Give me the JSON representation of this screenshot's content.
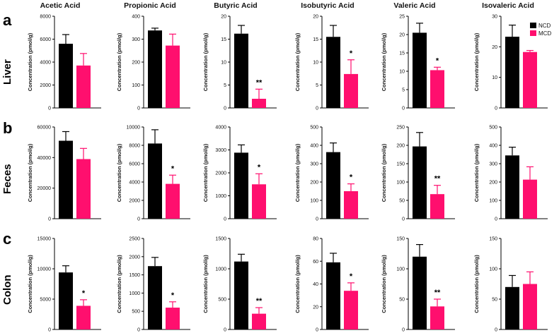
{
  "colors": {
    "ncd": "#000000",
    "mcd": "#ff0f6e"
  },
  "legend": [
    {
      "name": "NCD",
      "color": "#000000"
    },
    {
      "name": "MCD",
      "color": "#ff0f6e"
    }
  ],
  "ylabel": "Concentration (pmol/g)",
  "column_titles": [
    "Acetic Acid",
    "Propionic Acid",
    "Butyric Acid",
    "Isobutyric Acid",
    "Valeric Acid",
    "Isovaleric Acid"
  ],
  "rows": [
    {
      "letter": "a",
      "name": "Liver"
    },
    {
      "letter": "b",
      "name": "Feces"
    },
    {
      "letter": "c",
      "name": "Colon"
    }
  ],
  "chart_data": [
    {
      "type": "bar",
      "row": "Liver",
      "title": "Acetic Acid",
      "categories": [
        "NCD",
        "MCD"
      ],
      "values": [
        5600,
        3700
      ],
      "errors": [
        800,
        1050
      ],
      "ylim": [
        0,
        8000
      ],
      "yticks": [
        0,
        2000,
        4000,
        6000,
        8000
      ],
      "significance": "",
      "ylabel": "Concentration (pmol/g)"
    },
    {
      "type": "bar",
      "row": "Liver",
      "title": "Propionic Acid",
      "categories": [
        "NCD",
        "MCD"
      ],
      "values": [
        338,
        272
      ],
      "errors": [
        10,
        50
      ],
      "ylim": [
        0,
        400
      ],
      "yticks": [
        0,
        100,
        200,
        300,
        400
      ],
      "significance": "",
      "ylabel": "Concentration (pmol/g)"
    },
    {
      "type": "bar",
      "row": "Liver",
      "title": "Butyric Acid",
      "categories": [
        "NCD",
        "MCD"
      ],
      "values": [
        16.2,
        2.0
      ],
      "errors": [
        1.8,
        2.1
      ],
      "ylim": [
        0,
        20
      ],
      "yticks": [
        0,
        5,
        10,
        15,
        20
      ],
      "significance": "**",
      "ylabel": "Concentration (pmol/g)"
    },
    {
      "type": "bar",
      "row": "Liver",
      "title": "Isobutyric Acid",
      "categories": [
        "NCD",
        "MCD"
      ],
      "values": [
        15.5,
        7.4
      ],
      "errors": [
        2.5,
        3.1
      ],
      "ylim": [
        0,
        20
      ],
      "yticks": [
        0,
        5,
        10,
        15,
        20
      ],
      "significance": "*",
      "ylabel": "Concentration (pmol/g)"
    },
    {
      "type": "bar",
      "row": "Liver",
      "title": "Valeric Acid",
      "categories": [
        "NCD",
        "MCD"
      ],
      "values": [
        20.5,
        10.3
      ],
      "errors": [
        2.6,
        0.8
      ],
      "ylim": [
        0,
        25
      ],
      "yticks": [
        0,
        5,
        10,
        15,
        20,
        25
      ],
      "significance": "*",
      "ylabel": "Concentration (pmol/g)"
    },
    {
      "type": "bar",
      "row": "Liver",
      "title": "Isovaleric Acid",
      "categories": [
        "NCD",
        "MCD"
      ],
      "values": [
        23.3,
        18.3
      ],
      "errors": [
        3.8,
        0.5
      ],
      "ylim": [
        0,
        30
      ],
      "yticks": [
        0,
        10,
        20,
        30
      ],
      "significance": "",
      "ylabel": "Concentration (pmol/g)"
    },
    {
      "type": "bar",
      "row": "Feces",
      "title": "Acetic Acid",
      "categories": [
        "NCD",
        "MCD"
      ],
      "values": [
        51000,
        39000
      ],
      "errors": [
        6000,
        7000
      ],
      "ylim": [
        0,
        60000
      ],
      "yticks": [
        0,
        20000,
        40000,
        60000
      ],
      "significance": "",
      "ylabel": "Concentration (pmol/g)"
    },
    {
      "type": "bar",
      "row": "Feces",
      "title": "Propionic Acid",
      "categories": [
        "NCD",
        "MCD"
      ],
      "values": [
        8200,
        3800
      ],
      "errors": [
        1500,
        950
      ],
      "ylim": [
        0,
        10000
      ],
      "yticks": [
        0,
        2000,
        4000,
        6000,
        8000,
        10000
      ],
      "significance": "*",
      "ylabel": "Concentration (pmol/g)"
    },
    {
      "type": "bar",
      "row": "Feces",
      "title": "Butyric Acid",
      "categories": [
        "NCD",
        "MCD"
      ],
      "values": [
        2880,
        1500
      ],
      "errors": [
        340,
        460
      ],
      "ylim": [
        0,
        4000
      ],
      "yticks": [
        0,
        1000,
        2000,
        3000,
        4000
      ],
      "significance": "*",
      "ylabel": "Concentration (pmol/g)"
    },
    {
      "type": "bar",
      "row": "Feces",
      "title": "Isobutyric Acid",
      "categories": [
        "NCD",
        "MCD"
      ],
      "values": [
        363,
        150
      ],
      "errors": [
        50,
        40
      ],
      "ylim": [
        0,
        500
      ],
      "yticks": [
        0,
        100,
        200,
        300,
        400,
        500
      ],
      "significance": "*",
      "ylabel": "Concentration (pmol/g)"
    },
    {
      "type": "bar",
      "row": "Feces",
      "title": "Valeric Acid",
      "categories": [
        "NCD",
        "MCD"
      ],
      "values": [
        197,
        67
      ],
      "errors": [
        38,
        24
      ],
      "ylim": [
        0,
        250
      ],
      "yticks": [
        0,
        50,
        100,
        150,
        200,
        250
      ],
      "significance": "**",
      "ylabel": "Concentration (pmol/g)"
    },
    {
      "type": "bar",
      "row": "Feces",
      "title": "Isovaleric Acid",
      "categories": [
        "NCD",
        "MCD"
      ],
      "values": [
        345,
        213
      ],
      "errors": [
        45,
        70
      ],
      "ylim": [
        0,
        500
      ],
      "yticks": [
        0,
        100,
        200,
        300,
        400,
        500
      ],
      "significance": "",
      "ylabel": "Concentration (pmol/g)"
    },
    {
      "type": "bar",
      "row": "Colon",
      "title": "Acetic Acid",
      "categories": [
        "NCD",
        "MCD"
      ],
      "values": [
        9400,
        3900
      ],
      "errors": [
        1100,
        1000
      ],
      "ylim": [
        0,
        15000
      ],
      "yticks": [
        0,
        5000,
        10000,
        15000
      ],
      "significance": "*",
      "ylabel": "Concentration (pmol/g)"
    },
    {
      "type": "bar",
      "row": "Colon",
      "title": "Propionic Acid",
      "categories": [
        "NCD",
        "MCD"
      ],
      "values": [
        1740,
        600
      ],
      "errors": [
        240,
        160
      ],
      "ylim": [
        0,
        2500
      ],
      "yticks": [
        0,
        500,
        1000,
        1500,
        2000,
        2500
      ],
      "significance": "*",
      "ylabel": "Concentration (pmol/g)"
    },
    {
      "type": "bar",
      "row": "Colon",
      "title": "Butyric Acid",
      "categories": [
        "NCD",
        "MCD"
      ],
      "values": [
        1120,
        260
      ],
      "errors": [
        120,
        100
      ],
      "ylim": [
        0,
        1500
      ],
      "yticks": [
        0,
        500,
        1000,
        1500
      ],
      "significance": "**",
      "ylabel": "Concentration (pmol/g)"
    },
    {
      "type": "bar",
      "row": "Colon",
      "title": "Isobutyric Acid",
      "categories": [
        "NCD",
        "MCD"
      ],
      "values": [
        59,
        34
      ],
      "errors": [
        8,
        7
      ],
      "ylim": [
        0,
        80
      ],
      "yticks": [
        0,
        20,
        40,
        60,
        80
      ],
      "significance": "*",
      "ylabel": "Concentration (pmol/g)"
    },
    {
      "type": "bar",
      "row": "Colon",
      "title": "Valeric Acid",
      "categories": [
        "NCD",
        "MCD"
      ],
      "values": [
        120,
        38
      ],
      "errors": [
        20,
        12
      ],
      "ylim": [
        0,
        150
      ],
      "yticks": [
        0,
        50,
        100,
        150
      ],
      "significance": "**",
      "ylabel": "Concentration (pmol/g)"
    },
    {
      "type": "bar",
      "row": "Colon",
      "title": "Isovaleric Acid",
      "categories": [
        "NCD",
        "MCD"
      ],
      "values": [
        70,
        75
      ],
      "errors": [
        19,
        20
      ],
      "ylim": [
        0,
        150
      ],
      "yticks": [
        0,
        50,
        100,
        150
      ],
      "significance": "",
      "ylabel": "Concentration (pmol/g)"
    }
  ]
}
